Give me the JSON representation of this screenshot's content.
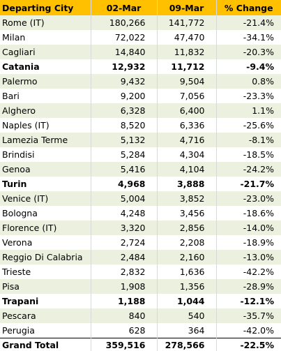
{
  "table": {
    "header": [
      "Departing City",
      "02-Mar",
      "09-Mar",
      "% Change"
    ],
    "rows": [
      [
        "Rome (IT)",
        "180,266",
        "141,772",
        "-21.4%"
      ],
      [
        "Milan",
        "72,022",
        "47,470",
        "-34.1%"
      ],
      [
        "Cagliari",
        "14,840",
        "11,832",
        "-20.3%"
      ],
      [
        "Catania",
        "12,932",
        "11,712",
        "-9.4%"
      ],
      [
        "Palermo",
        "9,432",
        "9,504",
        "0.8%"
      ],
      [
        "Bari",
        "9,200",
        "7,056",
        "-23.3%"
      ],
      [
        "Alghero",
        "6,328",
        "6,400",
        "1.1%"
      ],
      [
        "Naples (IT)",
        "8,520",
        "6,336",
        "-25.6%"
      ],
      [
        "Lamezia Terme",
        "5,132",
        "4,716",
        "-8.1%"
      ],
      [
        "Brindisi",
        "5,284",
        "4,304",
        "-18.5%"
      ],
      [
        "Genoa",
        "5,416",
        "4,104",
        "-24.2%"
      ],
      [
        "Turin",
        "4,968",
        "3,888",
        "-21.7%"
      ],
      [
        "Venice (IT)",
        "5,004",
        "3,852",
        "-23.0%"
      ],
      [
        "Bologna",
        "4,248",
        "3,456",
        "-18.6%"
      ],
      [
        "Florence (IT)",
        "3,320",
        "2,856",
        "-14.0%"
      ],
      [
        "Verona",
        "2,724",
        "2,208",
        "-18.9%"
      ],
      [
        "Reggio Di Calabria",
        "2,484",
        "2,160",
        "-13.0%"
      ],
      [
        "Trieste",
        "2,832",
        "1,636",
        "-42.2%"
      ],
      [
        "Pisa",
        "1,908",
        "1,356",
        "-28.9%"
      ],
      [
        "Trapani",
        "1,188",
        "1,044",
        "-12.1%"
      ],
      [
        "Pescara",
        "840",
        "540",
        "-35.7%"
      ],
      [
        "Perugia",
        "628",
        "364",
        "-42.0%"
      ]
    ],
    "total": [
      "Grand Total",
      "359,516",
      "278,566",
      "-22.5%"
    ]
  }
}
